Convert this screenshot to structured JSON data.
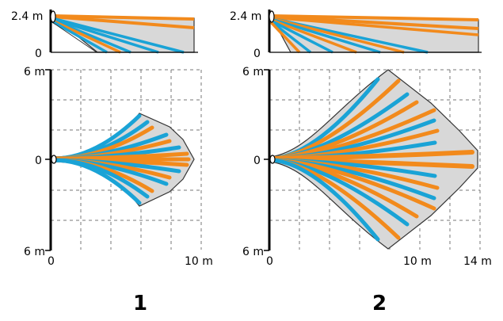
{
  "colors": {
    "orange": "#f28a1c",
    "blue": "#1aa3d6",
    "zone": "#d8d8d8"
  },
  "labels": {
    "top_height": "2.4 m",
    "top_zero": "0",
    "range": "6 m",
    "center": "0",
    "x_zero": "0",
    "diagram1_x": "10 m",
    "diagram2_x_a": "10 m",
    "diagram2_x_b": "14 m",
    "caption1": "1",
    "caption2": "2"
  }
}
